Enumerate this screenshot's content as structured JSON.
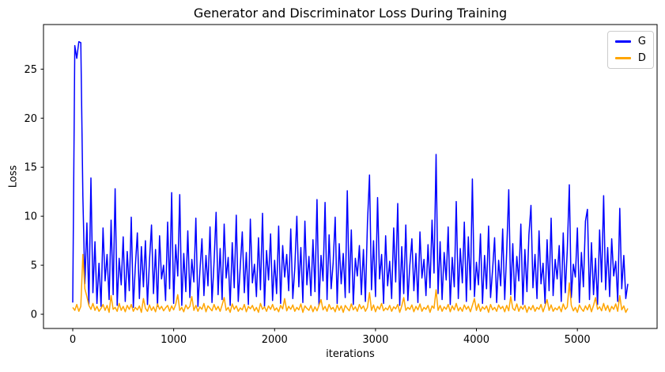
{
  "chart_data": {
    "type": "line",
    "title": "Generator and Discriminator Loss During Training",
    "xlabel": "iterations",
    "ylabel": "Loss",
    "xlim": [
      -290,
      5790
    ],
    "ylim": [
      -1.45,
      29.55
    ],
    "x_ticks": [
      0,
      1000,
      2000,
      3000,
      4000,
      5000
    ],
    "y_ticks": [
      0,
      5,
      10,
      15,
      20,
      25
    ],
    "grid": false,
    "legend_position": "upper right",
    "colors": {
      "spine": "#000000",
      "text": "#000000",
      "legend_border": "#cccccc",
      "background": "#ffffff"
    },
    "x_step": 20,
    "series": [
      {
        "name": "G",
        "color": "#0000ff",
        "values": [
          1.2,
          27.4,
          26.1,
          27.8,
          27.7,
          12.0,
          3.1,
          9.3,
          1.0,
          13.9,
          2.2,
          7.4,
          1.1,
          5.2,
          0.8,
          8.8,
          3.4,
          6.1,
          1.5,
          9.6,
          2.0,
          12.8,
          0.9,
          5.7,
          3.0,
          7.9,
          1.3,
          6.4,
          2.4,
          9.9,
          0.7,
          4.8,
          8.3,
          1.6,
          6.9,
          2.8,
          7.5,
          1.0,
          5.4,
          9.1,
          2.1,
          6.6,
          0.8,
          8.0,
          3.6,
          5.0,
          1.4,
          9.4,
          2.6,
          12.4,
          1.1,
          7.1,
          3.9,
          12.2,
          0.9,
          6.2,
          2.3,
          8.5,
          1.7,
          5.6,
          3.3,
          9.8,
          0.8,
          4.4,
          7.7,
          1.9,
          6.0,
          2.9,
          8.9,
          1.2,
          5.3,
          10.4,
          2.0,
          6.7,
          1.5,
          9.2,
          3.7,
          5.8,
          0.9,
          7.3,
          2.7,
          10.1,
          1.3,
          4.9,
          8.4,
          2.2,
          6.3,
          1.0,
          9.7,
          3.2,
          5.1,
          1.8,
          7.8,
          2.5,
          10.3,
          0.8,
          6.5,
          3.5,
          8.2,
          1.4,
          5.5,
          2.1,
          9.0,
          1.1,
          7.0,
          3.8,
          6.1,
          2.4,
          8.7,
          1.6,
          4.7,
          10.0,
          2.8,
          6.8,
          1.2,
          9.5,
          3.0,
          5.9,
          1.9,
          7.6,
          2.3,
          11.7,
          0.9,
          6.0,
          3.4,
          11.4,
          1.5,
          8.1,
          2.6,
          5.2,
          9.9,
          1.1,
          7.2,
          3.1,
          6.2,
          1.7,
          12.6,
          2.2,
          8.6,
          1.0,
          5.7,
          3.9,
          7.0,
          2.0,
          6.6,
          1.3,
          9.3,
          14.2,
          2.5,
          7.5,
          1.8,
          11.9,
          3.6,
          6.1,
          1.1,
          8.0,
          2.9,
          5.4,
          1.6,
          8.8,
          3.3,
          11.3,
          0.9,
          6.9,
          2.1,
          9.1,
          1.4,
          5.0,
          7.7,
          2.4,
          6.2,
          1.2,
          8.4,
          3.7,
          5.6,
          1.9,
          7.1,
          2.7,
          9.6,
          4.2,
          16.3,
          2.1,
          7.4,
          1.5,
          6.3,
          3.5,
          8.9,
          1.0,
          5.8,
          2.8,
          11.5,
          1.6,
          6.7,
          3.2,
          9.4,
          1.3,
          7.9,
          2.5,
          13.8,
          1.8,
          5.3,
          3.0,
          8.2,
          1.1,
          6.0,
          2.6,
          9.0,
          1.7,
          4.6,
          7.8,
          1.2,
          5.5,
          2.9,
          8.7,
          1.5,
          6.4,
          12.7,
          2.0,
          7.2,
          1.4,
          5.9,
          3.4,
          9.2,
          1.0,
          6.6,
          2.3,
          8.1,
          11.1,
          2.7,
          6.1,
          1.6,
          8.5,
          3.1,
          5.2,
          1.1,
          7.6,
          2.4,
          9.8,
          1.9,
          5.6,
          3.6,
          7.0,
          1.3,
          8.3,
          2.2,
          6.5,
          13.2,
          1.7,
          5.1,
          3.8,
          8.8,
          1.2,
          6.3,
          2.8,
          9.5,
          10.7,
          1.5,
          7.3,
          2.0,
          5.7,
          1.0,
          8.6,
          3.3,
          12.1,
          2.5,
          6.8,
          1.8,
          7.7,
          3.9,
          5.4,
          1.3,
          10.8,
          2.6,
          6.0,
          1.6,
          3.1
        ]
      },
      {
        "name": "D",
        "color": "#ffa500",
        "values": [
          0.7,
          0.4,
          1.0,
          0.3,
          0.8,
          6.1,
          2.6,
          1.8,
          0.9,
          0.5,
          1.1,
          0.4,
          0.8,
          0.3,
          0.6,
          1.0,
          0.4,
          0.9,
          0.2,
          1.9,
          0.5,
          0.7,
          0.3,
          1.1,
          0.4,
          0.8,
          0.25,
          0.9,
          0.5,
          1.0,
          0.3,
          0.7,
          0.45,
          0.85,
          0.2,
          1.6,
          0.6,
          0.3,
          0.95,
          0.4,
          0.75,
          0.25,
          1.05,
          0.5,
          0.8,
          0.35,
          0.65,
          0.9,
          0.3,
          0.85,
          0.45,
          1.0,
          2.0,
          0.4,
          0.7,
          0.25,
          0.95,
          0.55,
          0.8,
          1.8,
          0.4,
          0.9,
          0.3,
          0.75,
          0.5,
          1.1,
          0.25,
          0.85,
          0.6,
          0.35,
          1.0,
          0.45,
          0.8,
          0.3,
          0.95,
          1.7,
          0.4,
          0.7,
          0.2,
          1.05,
          0.5,
          0.85,
          0.3,
          0.65,
          0.45,
          1.0,
          0.25,
          0.8,
          0.55,
          0.9,
          0.35,
          0.7,
          0.2,
          1.1,
          0.5,
          0.75,
          0.3,
          0.85,
          0.5,
          1.0,
          0.4,
          0.65,
          0.25,
          0.9,
          0.55,
          1.6,
          0.35,
          0.8,
          0.5,
          0.95,
          0.3,
          0.7,
          0.45,
          1.05,
          0.2,
          0.85,
          0.6,
          0.4,
          0.9,
          0.25,
          0.75,
          0.35,
          0.9,
          1.5,
          0.45,
          0.8,
          0.3,
          1.0,
          0.5,
          0.7,
          0.25,
          0.95,
          0.4,
          0.85,
          0.2,
          0.9,
          0.6,
          0.35,
          1.05,
          0.45,
          0.75,
          0.3,
          1.0,
          0.55,
          0.85,
          0.3,
          0.7,
          2.2,
          0.4,
          0.95,
          0.25,
          0.8,
          0.5,
          1.1,
          0.35,
          0.65,
          0.45,
          0.9,
          0.3,
          0.75,
          0.55,
          1.0,
          0.2,
          0.85,
          1.7,
          0.4,
          0.7,
          0.5,
          0.95,
          0.25,
          0.8,
          0.45,
          1.05,
          0.3,
          0.7,
          0.5,
          0.9,
          0.2,
          0.85,
          0.6,
          2.5,
          0.4,
          0.9,
          0.3,
          0.75,
          0.5,
          1.0,
          0.25,
          0.85,
          0.45,
          1.1,
          0.35,
          0.7,
          0.3,
          0.95,
          0.5,
          0.8,
          0.25,
          0.9,
          1.6,
          0.4,
          1.05,
          0.3,
          0.75,
          0.5,
          0.85,
          0.2,
          1.0,
          0.45,
          0.7,
          0.3,
          0.95,
          0.55,
          0.8,
          0.25,
          0.9,
          0.35,
          1.8,
          0.6,
          0.4,
          1.05,
          0.3,
          0.8,
          0.5,
          0.9,
          0.2,
          0.75,
          0.45,
          0.9,
          0.3,
          0.7,
          0.5,
          1.0,
          0.25,
          0.85,
          1.5,
          0.4,
          0.95,
          0.3,
          0.65,
          0.45,
          0.8,
          0.25,
          1.05,
          0.5,
          0.75,
          3.2,
          0.9,
          0.35,
          0.7,
          0.2,
          0.95,
          0.55,
          0.3,
          0.85,
          0.45,
          1.0,
          0.25,
          0.9,
          1.7,
          0.5,
          0.75,
          0.35,
          1.1,
          0.4,
          0.9,
          0.25,
          0.8,
          0.5,
          1.05,
          0.3,
          1.9,
          0.45,
          0.85,
          0.2,
          0.6
        ]
      }
    ]
  }
}
